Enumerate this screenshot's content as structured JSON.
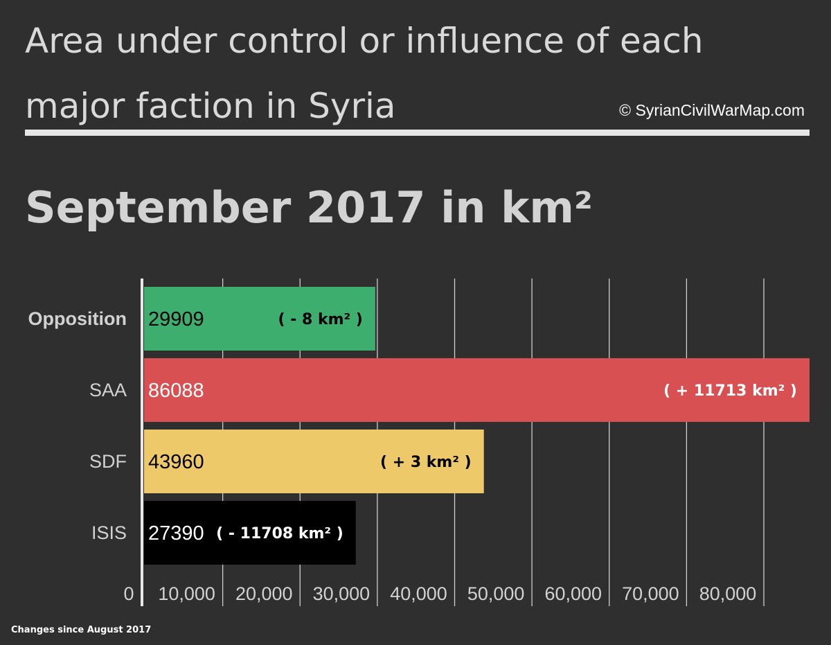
{
  "title": "Area under control or influence of each major faction in Syria",
  "credit": "© SyrianCivilWarMap.com",
  "subtitle": "September 2017 in km²",
  "footnote": "Changes since August 2017",
  "chart_data": {
    "type": "bar",
    "orientation": "horizontal",
    "categories": [
      "Opposition",
      "SAA",
      "SDF",
      "ISIS"
    ],
    "values": [
      29909,
      86088,
      43960,
      27390
    ],
    "value_labels": [
      "29909",
      "86088",
      "43960",
      "27390"
    ],
    "annotations": [
      "(  - 8 km² )",
      "( + 11713 km² )",
      "( + 3 km² )",
      "( - 11708 km² )"
    ],
    "colors": [
      "#3dae6e",
      "#d95052",
      "#edc96a",
      "#000000"
    ],
    "label_colors": [
      "#000000",
      "#ffffff",
      "#000000",
      "#ffffff"
    ],
    "xlim": [
      0,
      86088
    ],
    "x_ticks": [
      0,
      10000,
      20000,
      30000,
      40000,
      50000,
      60000,
      70000,
      80000
    ],
    "x_tick_labels": [
      "0",
      "10,000",
      "20,000",
      "30,000",
      "40,000",
      "50,000",
      "60,000",
      "70,000",
      "80,000"
    ],
    "grid": true,
    "xlabel": "",
    "ylabel": ""
  }
}
